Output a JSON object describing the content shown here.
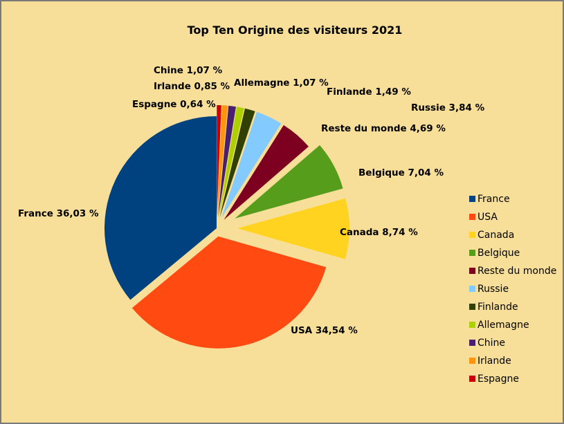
{
  "chart_data": {
    "type": "pie",
    "title": "Top Ten Origine des visiteurs 2021",
    "legend_position": "right",
    "exploded": true,
    "slices": [
      {
        "name": "France",
        "value": 36.03,
        "label": "France 36,03 %",
        "color": "#00427f"
      },
      {
        "name": "USA",
        "value": 34.54,
        "label": "USA 34,54 %",
        "color": "#ff4a12"
      },
      {
        "name": "Canada",
        "value": 8.74,
        "label": "Canada 8,74 %",
        "color": "#ffd320"
      },
      {
        "name": "Belgique",
        "value": 7.04,
        "label": "Belgique 7,04 %",
        "color": "#579d1c"
      },
      {
        "name": "Reste du monde",
        "value": 4.69,
        "label": "Reste du monde 4,69 %",
        "color": "#7e0021"
      },
      {
        "name": "Russie",
        "value": 3.84,
        "label": "Russie 3,84 %",
        "color": "#83caff"
      },
      {
        "name": "Finlande",
        "value": 1.49,
        "label": "Finlande 1,49 %",
        "color": "#314004"
      },
      {
        "name": "Allemagne",
        "value": 1.07,
        "label": "Allemagne 1,07 %",
        "color": "#aecf00"
      },
      {
        "name": "Chine",
        "value": 1.07,
        "label": "Chine 1,07 %",
        "color": "#4b1f6f"
      },
      {
        "name": "Irlande",
        "value": 0.85,
        "label": "Irlande 0,85 %",
        "color": "#ff950e"
      },
      {
        "name": "Espagne",
        "value": 0.64,
        "label": "Espagne 0,64 %",
        "color": "#c5000b"
      }
    ]
  }
}
